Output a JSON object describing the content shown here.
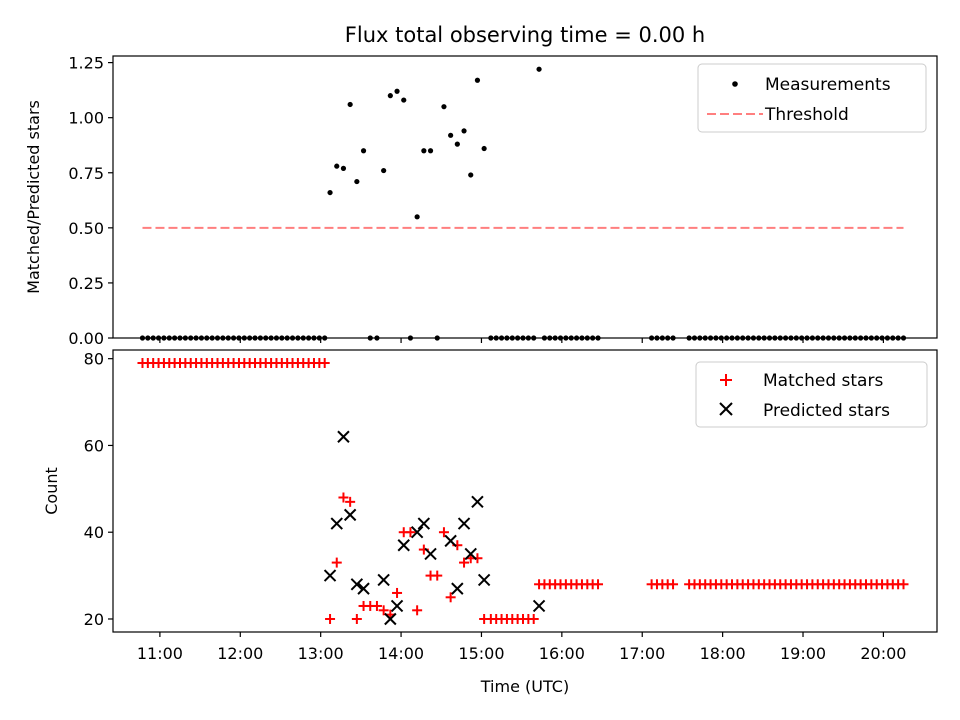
{
  "chart_data": [
    {
      "type": "scatter",
      "title": "Flux total observing time = 0.00 h",
      "xlabel": "",
      "ylabel": "Matched/Predicted stars",
      "xlim": [
        "10:25",
        "20:40"
      ],
      "ylim": [
        0,
        1.28
      ],
      "yticks": [
        0.0,
        0.25,
        0.5,
        0.75,
        1.0,
        1.25
      ],
      "ytick_labels": [
        "0.00",
        "0.25",
        "0.50",
        "0.75",
        "1.00",
        "1.25"
      ],
      "xticks": [
        "11:00",
        "12:00",
        "13:00",
        "14:00",
        "15:00",
        "16:00",
        "17:00",
        "18:00",
        "19:00",
        "20:00"
      ],
      "legend_position": "top-right",
      "series": [
        {
          "name": "Measurements",
          "marker": "dot",
          "color": "#000000",
          "x": [
            "10:47",
            "10:51",
            "10:55",
            "10:59",
            "11:03",
            "11:07",
            "11:11",
            "11:15",
            "11:19",
            "11:23",
            "11:27",
            "11:31",
            "11:35",
            "11:39",
            "11:43",
            "11:47",
            "11:51",
            "11:55",
            "11:59",
            "12:03",
            "12:07",
            "12:11",
            "12:15",
            "12:19",
            "12:23",
            "12:27",
            "12:31",
            "12:35",
            "12:39",
            "12:43",
            "12:47",
            "12:51",
            "12:55",
            "12:59",
            "13:03",
            "13:07",
            "13:12",
            "13:17",
            "13:22",
            "13:27",
            "13:32",
            "13:37",
            "13:42",
            "13:47",
            "13:52",
            "13:57",
            "14:02",
            "14:07",
            "14:12",
            "14:17",
            "14:22",
            "14:27",
            "14:32",
            "14:37",
            "14:42",
            "14:47",
            "14:52",
            "14:57",
            "15:02",
            "15:07",
            "15:11",
            "15:15",
            "15:19",
            "15:23",
            "15:27",
            "15:31",
            "15:35",
            "15:39",
            "15:43",
            "15:47",
            "15:51",
            "15:55",
            "15:59",
            "16:03",
            "16:07",
            "16:11",
            "16:15",
            "16:19",
            "16:23",
            "16:27",
            "17:07",
            "17:11",
            "17:15",
            "17:19",
            "17:23",
            "17:35",
            "17:39",
            "17:43",
            "17:47",
            "17:51",
            "17:55",
            "17:59",
            "18:03",
            "18:07",
            "18:11",
            "18:15",
            "18:19",
            "18:23",
            "18:27",
            "18:31",
            "18:35",
            "18:39",
            "18:43",
            "18:47",
            "18:51",
            "18:55",
            "18:59",
            "19:03",
            "19:07",
            "19:11",
            "19:15",
            "19:19",
            "19:23",
            "19:27",
            "19:31",
            "19:35",
            "19:39",
            "19:43",
            "19:47",
            "19:51",
            "19:55",
            "19:59",
            "20:03",
            "20:07",
            "20:11",
            "20:15"
          ],
          "y": [
            0,
            0,
            0,
            0,
            0,
            0,
            0,
            0,
            0,
            0,
            0,
            0,
            0,
            0,
            0,
            0,
            0,
            0,
            0,
            0,
            0,
            0,
            0,
            0,
            0,
            0,
            0,
            0,
            0,
            0,
            0,
            0,
            0,
            0,
            0,
            0.66,
            0.78,
            0.77,
            1.06,
            0.71,
            0.85,
            0,
            0,
            0.76,
            1.1,
            1.12,
            1.08,
            0,
            0.55,
            0.85,
            0.85,
            0,
            1.05,
            0.92,
            0.88,
            0.94,
            0.74,
            1.17,
            0.86,
            0,
            0,
            0,
            0,
            0,
            0,
            0,
            0,
            0,
            1.22,
            0,
            0,
            0,
            0,
            0,
            0,
            0,
            0,
            0,
            0,
            0,
            0,
            0,
            0,
            0,
            0,
            0,
            0,
            0,
            0,
            0,
            0,
            0,
            0,
            0,
            0,
            0,
            0,
            0,
            0,
            0,
            0,
            0,
            0,
            0,
            0,
            0,
            0,
            0,
            0,
            0,
            0,
            0,
            0,
            0,
            0,
            0,
            0,
            0,
            0,
            0,
            0,
            0,
            0,
            0,
            0,
            0
          ]
        },
        {
          "name": "Threshold",
          "marker": "dashed-line",
          "color": "#ff7f7f",
          "x": [
            "10:47",
            "20:15"
          ],
          "y": [
            0.5,
            0.5
          ]
        }
      ]
    },
    {
      "type": "scatter",
      "title": "",
      "xlabel": "Time (UTC)",
      "ylabel": "Count",
      "xlim": [
        "10:25",
        "20:40"
      ],
      "ylim": [
        17,
        82
      ],
      "yticks": [
        20,
        40,
        60,
        80
      ],
      "ytick_labels": [
        "20",
        "40",
        "60",
        "80"
      ],
      "xticks": [
        "11:00",
        "12:00",
        "13:00",
        "14:00",
        "15:00",
        "16:00",
        "17:00",
        "18:00",
        "19:00",
        "20:00"
      ],
      "legend_position": "top-right",
      "series": [
        {
          "name": "Matched stars",
          "marker": "plus",
          "color": "#ff0000",
          "x": [
            "10:47",
            "10:51",
            "10:55",
            "10:59",
            "11:03",
            "11:07",
            "11:11",
            "11:15",
            "11:19",
            "11:23",
            "11:27",
            "11:31",
            "11:35",
            "11:39",
            "11:43",
            "11:47",
            "11:51",
            "11:55",
            "11:59",
            "12:03",
            "12:07",
            "12:11",
            "12:15",
            "12:19",
            "12:23",
            "12:27",
            "12:31",
            "12:35",
            "12:39",
            "12:43",
            "12:47",
            "12:51",
            "12:55",
            "12:59",
            "13:03",
            "13:07",
            "13:12",
            "13:17",
            "13:22",
            "13:27",
            "13:32",
            "13:37",
            "13:42",
            "13:47",
            "13:52",
            "13:57",
            "14:02",
            "14:07",
            "14:12",
            "14:17",
            "14:22",
            "14:27",
            "14:32",
            "14:37",
            "14:42",
            "14:47",
            "14:52",
            "14:57",
            "15:02",
            "15:07",
            "15:11",
            "15:15",
            "15:19",
            "15:23",
            "15:27",
            "15:31",
            "15:35",
            "15:39",
            "15:43",
            "15:47",
            "15:51",
            "15:55",
            "15:59",
            "16:03",
            "16:07",
            "16:11",
            "16:15",
            "16:19",
            "16:23",
            "16:27",
            "17:07",
            "17:11",
            "17:15",
            "17:19",
            "17:23",
            "17:35",
            "17:39",
            "17:43",
            "17:47",
            "17:51",
            "17:55",
            "17:59",
            "18:03",
            "18:07",
            "18:11",
            "18:15",
            "18:19",
            "18:23",
            "18:27",
            "18:31",
            "18:35",
            "18:39",
            "18:43",
            "18:47",
            "18:51",
            "18:55",
            "18:59",
            "19:03",
            "19:07",
            "19:11",
            "19:15",
            "19:19",
            "19:23",
            "19:27",
            "19:31",
            "19:35",
            "19:39",
            "19:43",
            "19:47",
            "19:51",
            "19:55",
            "19:59",
            "20:03",
            "20:07",
            "20:11",
            "20:15"
          ],
          "y": [
            79,
            79,
            79,
            79,
            79,
            79,
            79,
            79,
            79,
            79,
            79,
            79,
            79,
            79,
            79,
            79,
            79,
            79,
            79,
            79,
            79,
            79,
            79,
            79,
            79,
            79,
            79,
            79,
            79,
            79,
            79,
            79,
            79,
            79,
            79,
            20,
            33,
            48,
            47,
            20,
            23,
            23,
            23,
            22,
            21,
            26,
            40,
            40,
            22,
            36,
            30,
            30,
            40,
            25,
            37,
            33,
            34,
            34,
            20,
            20,
            20,
            20,
            20,
            20,
            20,
            20,
            20,
            20,
            28,
            28,
            28,
            28,
            28,
            28,
            28,
            28,
            28,
            28,
            28,
            28,
            28,
            28,
            28,
            28,
            28,
            28,
            28,
            28,
            28,
            28,
            28,
            28,
            28,
            28,
            28,
            28,
            28,
            28,
            28,
            28,
            28,
            28,
            28,
            28,
            28,
            28,
            28,
            28,
            28,
            28,
            28,
            28,
            28,
            28,
            28,
            28,
            28,
            28,
            28,
            28,
            28,
            28,
            28,
            28,
            28,
            28
          ]
        },
        {
          "name": "Predicted stars",
          "marker": "x",
          "color": "#000000",
          "x": [
            "13:07",
            "13:12",
            "13:17",
            "13:22",
            "13:27",
            "13:32",
            "13:47",
            "13:52",
            "13:57",
            "14:02",
            "14:12",
            "14:17",
            "14:22",
            "14:37",
            "14:42",
            "14:47",
            "14:52",
            "14:57",
            "15:02",
            "15:43"
          ],
          "y": [
            30,
            42,
            62,
            44,
            28,
            27,
            29,
            20,
            23,
            37,
            40,
            42,
            35,
            38,
            27,
            42,
            35,
            47,
            29,
            23
          ]
        }
      ]
    }
  ]
}
